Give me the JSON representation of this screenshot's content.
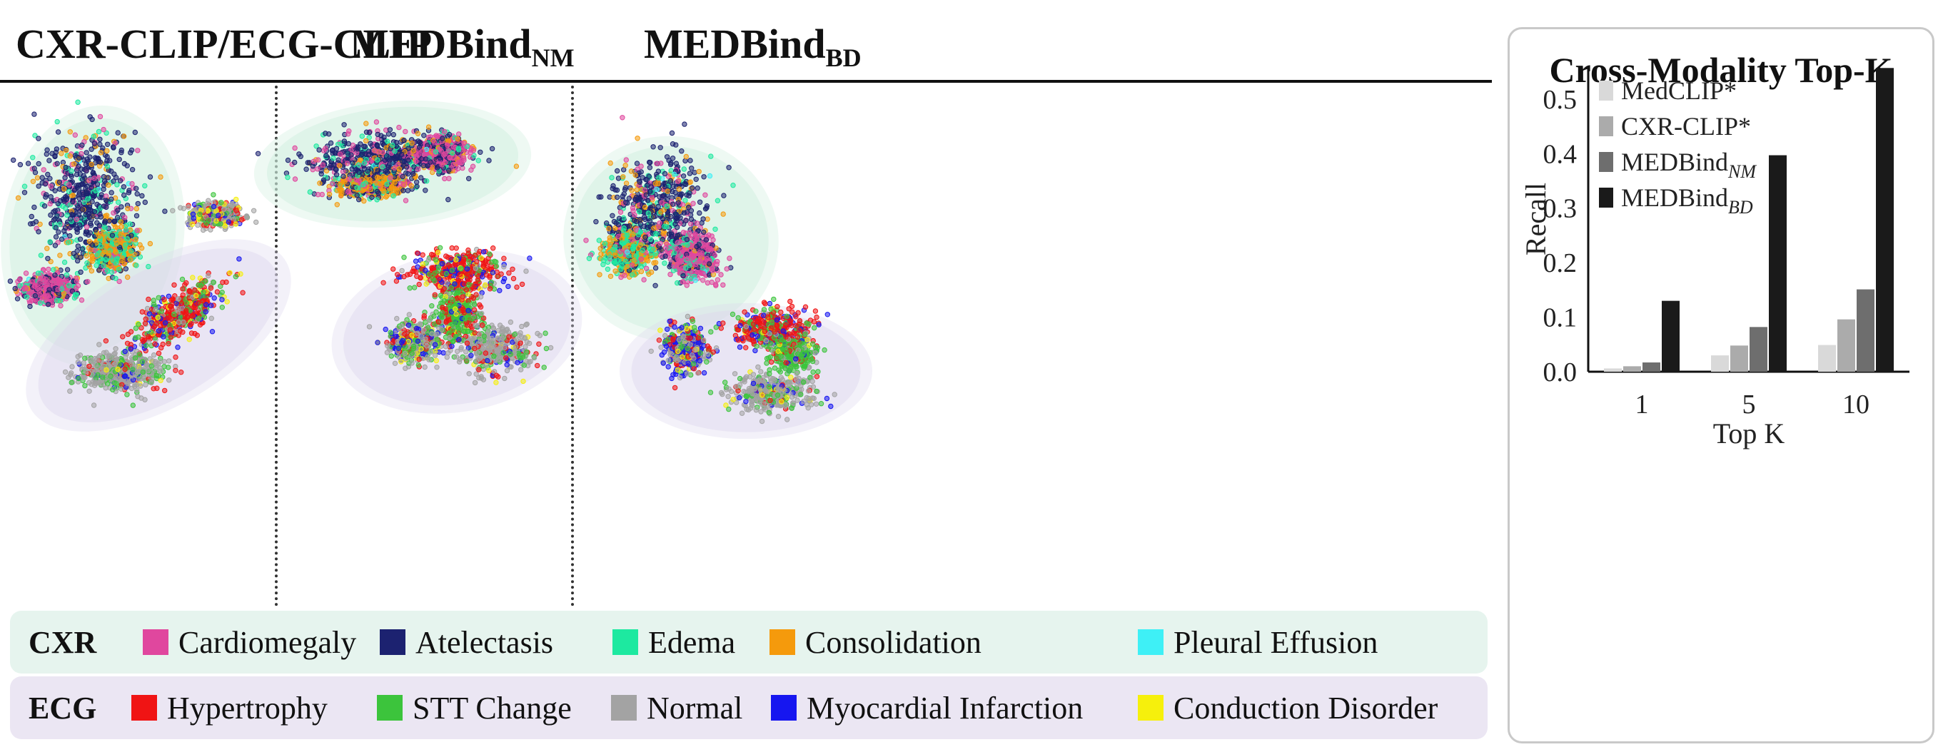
{
  "panels": [
    {
      "title_main": "CXR-CLIP/ECG-CLIP",
      "title_sub": ""
    },
    {
      "title_main": "MEDBind",
      "title_sub": "NM"
    },
    {
      "title_main": "MEDBind",
      "title_sub": "BD"
    }
  ],
  "legend": {
    "cxr": {
      "label": "CXR",
      "items": [
        {
          "name": "Cardiomegaly",
          "color": "#e0479e"
        },
        {
          "name": "Atelectasis",
          "color": "#1c2270"
        },
        {
          "name": "Edema",
          "color": "#1de9a0"
        },
        {
          "name": "Consolidation",
          "color": "#f59a0c"
        },
        {
          "name": "Pleural Effusion",
          "color": "#3ef0f6"
        }
      ]
    },
    "ecg": {
      "label": "ECG",
      "items": [
        {
          "name": "Hypertrophy",
          "color": "#f01414"
        },
        {
          "name": "STT Change",
          "color": "#3cc43c"
        },
        {
          "name": "Normal",
          "color": "#a3a3a3"
        },
        {
          "name": "Myocardial Infarction",
          "color": "#1616f0"
        },
        {
          "name": "Conduction Disorder",
          "color": "#f6f00c"
        }
      ]
    }
  },
  "chart_data": [
    {
      "type": "scatter",
      "panels": [
        "CXR-CLIP/ECG-CLIP",
        "MEDBindNM",
        "MEDBindBD"
      ],
      "groups": [
        "CXR",
        "ECG"
      ],
      "classes": {
        "CXR": [
          "Cardiomegaly",
          "Atelectasis",
          "Edema",
          "Consolidation",
          "Pleural Effusion"
        ],
        "ECG": [
          "Hypertrophy",
          "STT Change",
          "Normal",
          "Myocardial Infarction",
          "Conduction Disorder"
        ]
      }
    },
    {
      "type": "bar",
      "title": "Cross-Modality Top-K",
      "xlabel": "Top K",
      "ylabel": "Recall",
      "categories": [
        "1",
        "5",
        "10"
      ],
      "ylim": [
        0,
        0.55
      ],
      "yticks": [
        "0.0",
        "0.1",
        "0.2",
        "0.3",
        "0.4",
        "0.5"
      ],
      "legend_position": "top-left",
      "series": [
        {
          "name": "MedCLIP*",
          "sub": "",
          "color": "#d9d9d9",
          "values": [
            0.006,
            0.03,
            0.049
          ]
        },
        {
          "name": "CXR-CLIP*",
          "sub": "",
          "color": "#ababab",
          "values": [
            0.01,
            0.048,
            0.096
          ]
        },
        {
          "name": "MEDBind",
          "sub": "NM",
          "color": "#6e6e6e",
          "values": [
            0.017,
            0.082,
            0.151
          ]
        },
        {
          "name": "MEDBind",
          "sub": "BD",
          "color": "#1a1a1a",
          "values": [
            0.13,
            0.397,
            0.557
          ]
        }
      ]
    }
  ]
}
